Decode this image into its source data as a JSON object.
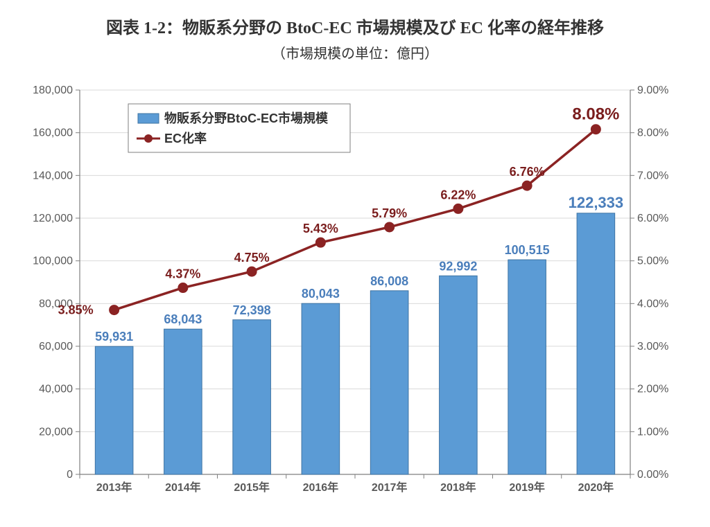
{
  "title": "図表 1-2：物販系分野の BtoC-EC 市場規模及び EC 化率の経年推移",
  "subtitle": "（市場規模の単位：億円）",
  "chart": {
    "type": "bar+line",
    "categories": [
      "2013年",
      "2014年",
      "2015年",
      "2016年",
      "2017年",
      "2018年",
      "2019年",
      "2020年"
    ],
    "bar_series": {
      "name": "物販系分野BtoC-EC市場規模",
      "values": [
        59931,
        68043,
        72398,
        80043,
        86008,
        92992,
        100515,
        122333
      ],
      "labels": [
        "59,931",
        "68,043",
        "72,398",
        "80,043",
        "86,008",
        "92,992",
        "100,515",
        "122,333"
      ],
      "color": "#5b9bd5",
      "border_color": "#3f74a3",
      "label_color": "#4a7ebb",
      "label_fontsize": 18,
      "last_label_fontsize": 22,
      "bar_width_ratio": 0.55
    },
    "line_series": {
      "name": "EC化率",
      "values": [
        3.85,
        4.37,
        4.75,
        5.43,
        5.79,
        6.22,
        6.76,
        8.08
      ],
      "labels": [
        "3.85%",
        "4.37%",
        "4.75%",
        "5.43%",
        "5.79%",
        "6.22%",
        "6.76%",
        "8.08%"
      ],
      "color": "#8b2323",
      "marker_color": "#8b2323",
      "marker_size": 7,
      "line_width": 3.5,
      "label_color": "#7a1d1d",
      "label_fontsize": 18,
      "last_label_fontsize": 24
    },
    "y_left": {
      "min": 0,
      "max": 180000,
      "step": 20000,
      "tick_labels": [
        "0",
        "20,000",
        "40,000",
        "60,000",
        "80,000",
        "100,000",
        "120,000",
        "140,000",
        "160,000",
        "180,000"
      ],
      "label_fontsize": 16,
      "label_color": "#595959"
    },
    "y_right": {
      "min": 0,
      "max": 9,
      "step": 1,
      "tick_labels": [
        "0.00%",
        "1.00%",
        "2.00%",
        "3.00%",
        "4.00%",
        "5.00%",
        "6.00%",
        "7.00%",
        "8.00%",
        "9.00%"
      ],
      "label_fontsize": 16,
      "label_color": "#595959"
    },
    "grid_color": "#d9d9d9",
    "axis_color": "#7f7f7f",
    "background_color": "#ffffff",
    "legend": {
      "position": "top-left-inside",
      "border_color": "#7f7f7f",
      "bar_swatch_color": "#5b9bd5",
      "line_swatch_color": "#8b2323",
      "fontsize": 18
    }
  },
  "legend_labels": {
    "bar": "物販系分野BtoC-EC市場規模",
    "line": "EC化率"
  }
}
